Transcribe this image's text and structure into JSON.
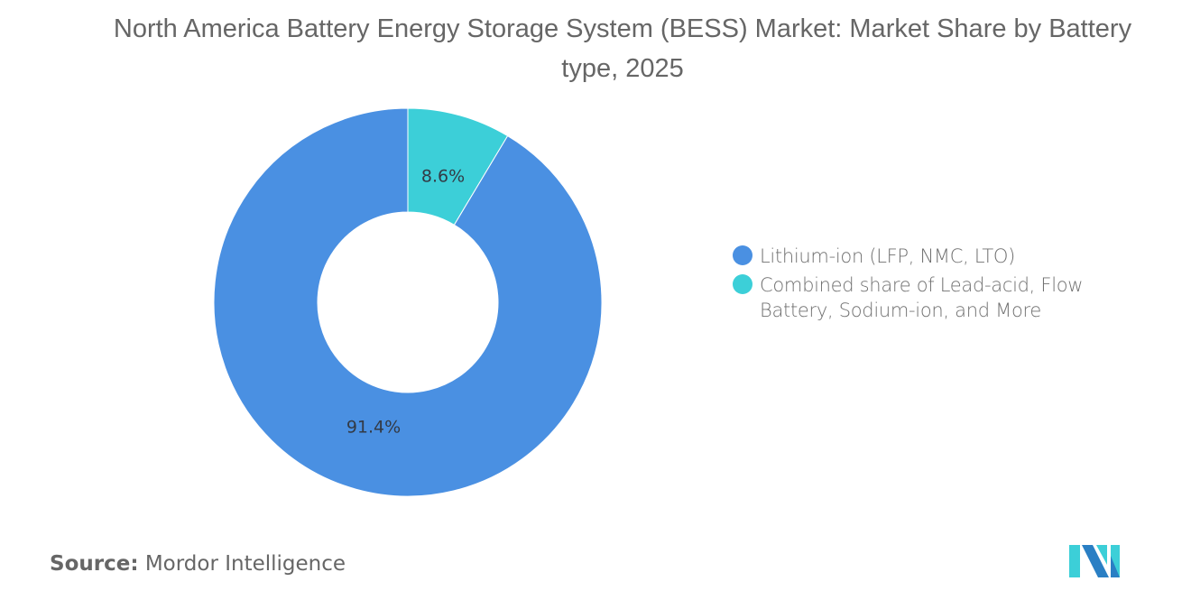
{
  "title": "North America Battery Energy Storage System (BESS) Market: Market Share by Battery type, 2025",
  "chart_data": {
    "type": "pie",
    "subtype": "donut",
    "title": "North America Battery Energy Storage System (BESS) Market: Market Share by Battery type, 2025",
    "categories": [
      "Lithium-ion (LFP, NMC, LTO)",
      "Combined share of Lead-acid, Flow Battery, Sodium-ion, and More"
    ],
    "values": [
      91.4,
      8.6
    ],
    "unit": "%",
    "colors": [
      "#4a90e2",
      "#3ccfd8"
    ],
    "data_labels": [
      "91.4%",
      "8.6%"
    ],
    "legend_position": "right"
  },
  "legend": {
    "items": [
      {
        "label": "Lithium-ion (LFP, NMC, LTO)",
        "color": "#4a90e2"
      },
      {
        "label": "Combined share of Lead-acid, Flow Battery, Sodium-ion, and More",
        "color": "#3ccfd8"
      }
    ]
  },
  "source": {
    "label": "Source:",
    "value": "Mordor Intelligence"
  },
  "logo": {
    "icon": "mordor-intelligence-logo-icon"
  }
}
